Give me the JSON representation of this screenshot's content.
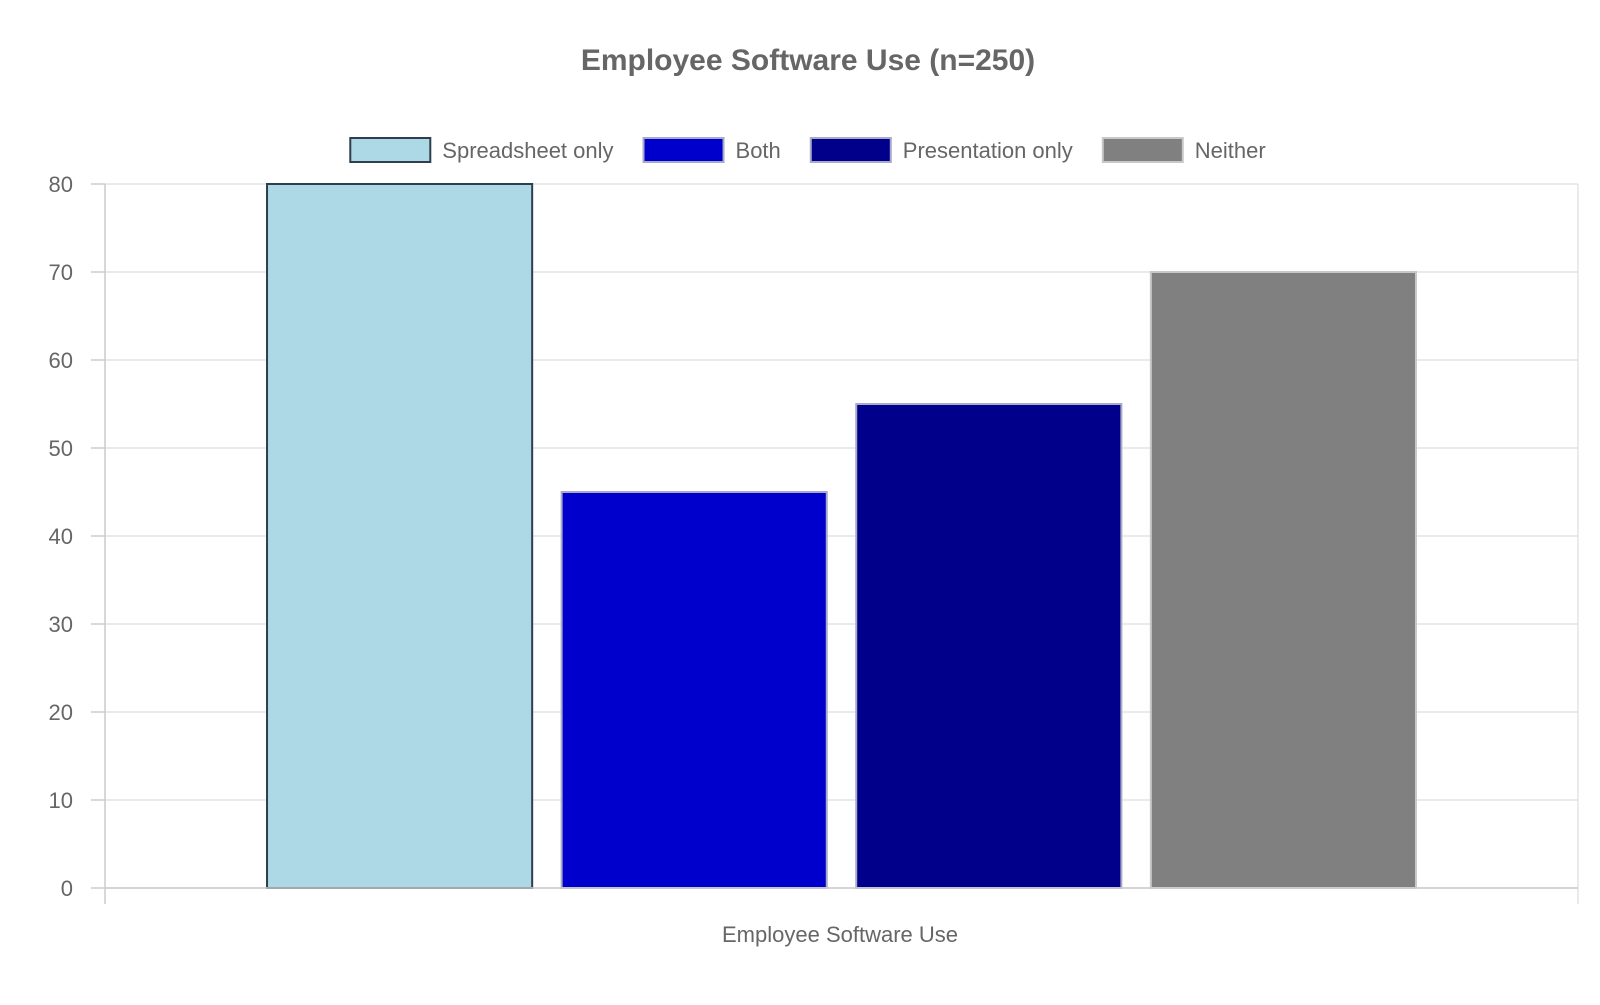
{
  "chart_data": {
    "type": "bar",
    "title": "Employee Software Use (n=250)",
    "xlabel": "Employee Software Use",
    "ylabel": "",
    "ylim": [
      0,
      80
    ],
    "yticks": [
      0,
      10,
      20,
      30,
      40,
      50,
      60,
      70,
      80
    ],
    "grid": true,
    "legend_position": "top",
    "categories": [
      "Employee Software Use"
    ],
    "series": [
      {
        "name": "Spreadsheet only",
        "values": [
          80
        ],
        "color": "#add8e6",
        "border": "#2f3e4e"
      },
      {
        "name": "Both",
        "values": [
          45
        ],
        "color": "#0000cd",
        "border": "#a9a9c8"
      },
      {
        "name": "Presentation only",
        "values": [
          55
        ],
        "color": "#00008b",
        "border": "#a9a9c8"
      },
      {
        "name": "Neither",
        "values": [
          70
        ],
        "color": "#808080",
        "border": "#c8c8c8"
      }
    ]
  }
}
